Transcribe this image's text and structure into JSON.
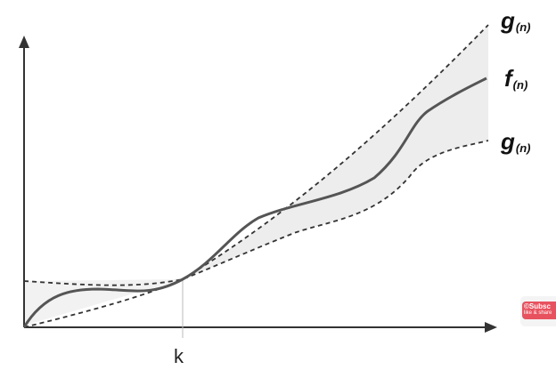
{
  "labels": {
    "upper_bound": "g",
    "upper_bound_sub": "(n)",
    "function": "f",
    "function_sub": "(n)",
    "lower_bound": "g",
    "lower_bound_sub": "(n)",
    "threshold": "k"
  },
  "badge": {
    "line1": "©Subsc",
    "line2": "like & share"
  },
  "colors": {
    "axis": "#333333",
    "function_curve": "#555555",
    "bound_curves": "#333333",
    "band_fill": "#ededed",
    "k_marker": "#bbbbbb",
    "badge": "#e8525f"
  }
}
